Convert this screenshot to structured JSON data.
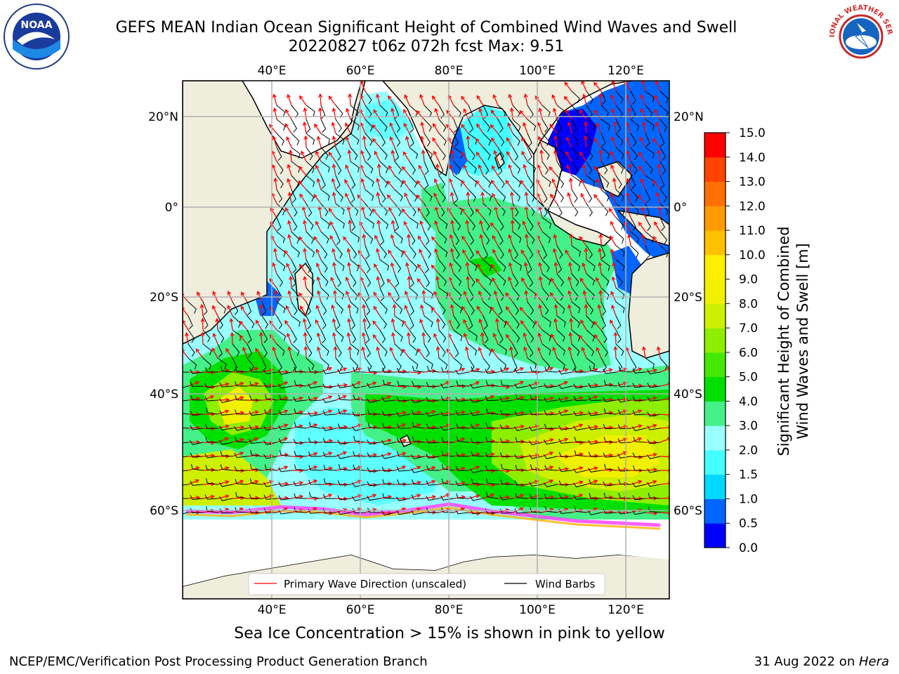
{
  "header": {
    "title_line1": "GEFS MEAN Indian Ocean Significant Height of Combined Wind Waves and Swell",
    "title_line2": "20220827 t06z 072h fcst   Max: 9.51"
  },
  "logos": {
    "left": "noaa-logo",
    "right": "nws-logo",
    "left_text": "NOAA",
    "right_text": "NATIONAL WEATHER SERVICE"
  },
  "map": {
    "lon_ticks": [
      "40°E",
      "60°E",
      "80°E",
      "100°E",
      "120°E"
    ],
    "lat_ticks": [
      "20°N",
      "0°",
      "20°S",
      "40°S",
      "60°S"
    ],
    "legend": {
      "wave_label": "Primary Wave Direction (unscaled)",
      "wind_label": "Wind Barbs",
      "wave_color": "#ff0000",
      "wind_color": "#000000"
    },
    "land_color": "#efeddc",
    "ocean_color": "#99ffff"
  },
  "colorbar": {
    "label_line1": "Significant Height of Combined",
    "label_line2": "Wind Waves and Swell [m]",
    "ticks": [
      "0.0",
      "0.5",
      "1.0",
      "1.5",
      "2.0",
      "3.0",
      "4.0",
      "5.0",
      "6.0",
      "7.0",
      "8.0",
      "9.0",
      "10.0",
      "11.0",
      "12.0",
      "13.0",
      "14.0",
      "15.0"
    ],
    "colors": [
      "#0000ff",
      "#0066ff",
      "#00d8ff",
      "#44ffff",
      "#99ffff",
      "#44f088",
      "#00e000",
      "#44e800",
      "#8eee00",
      "#ccf000",
      "#f0f000",
      "#ffee00",
      "#ffc000",
      "#ff9a00",
      "#ff7000",
      "#ff4400",
      "#ff0000"
    ]
  },
  "caption": "Sea Ice Concentration > 15% is shown in pink to yellow",
  "footer": {
    "left": "NCEP/EMC/Verification Post Processing Product Generation Branch",
    "right_date": "31 Aug 2022 on ",
    "right_host": "Hera"
  }
}
